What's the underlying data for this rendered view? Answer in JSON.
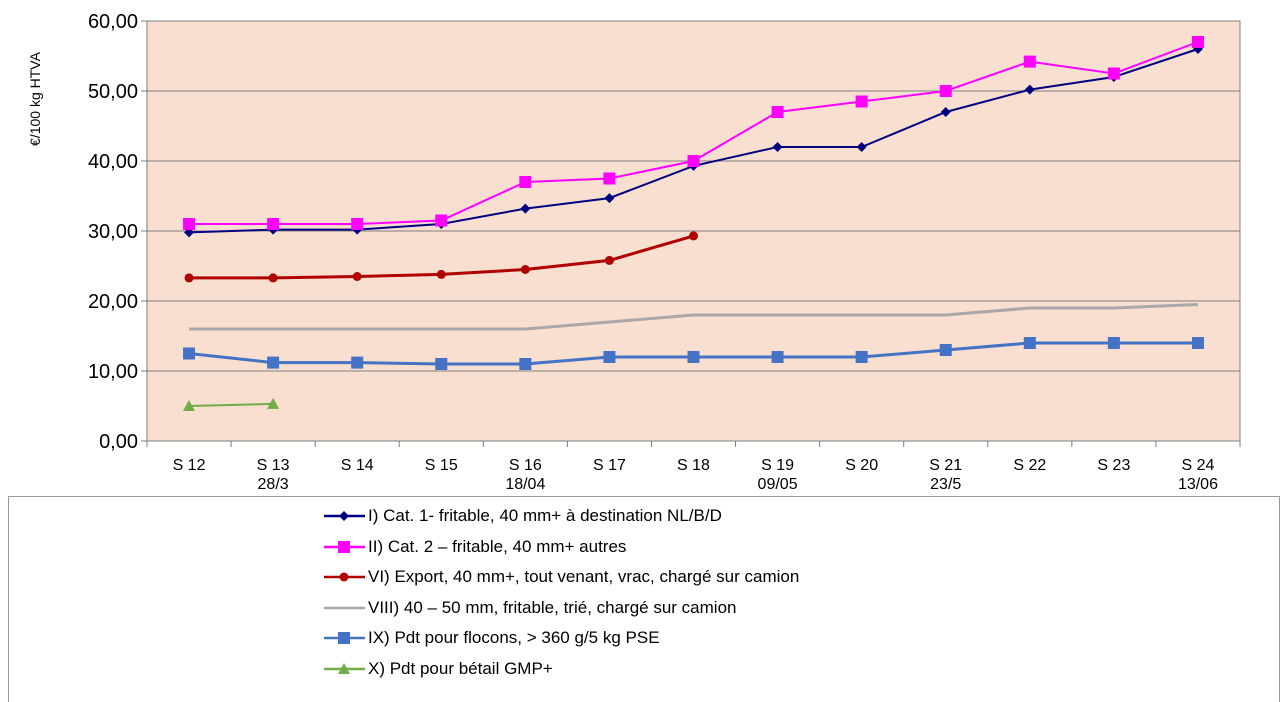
{
  "chart_data": {
    "type": "line",
    "ylabel": "€/100 kg HTVA",
    "ylim": [
      0,
      60
    ],
    "y_ticks": [
      "0,00",
      "10,00",
      "20,00",
      "30,00",
      "40,00",
      "50,00",
      "60,00"
    ],
    "categories": [
      [
        "S 12",
        ""
      ],
      [
        "S 13",
        "28/3"
      ],
      [
        "S 14",
        ""
      ],
      [
        "S 15",
        ""
      ],
      [
        "S 16",
        "18/04"
      ],
      [
        "S 17",
        ""
      ],
      [
        "S 18",
        ""
      ],
      [
        "S 19",
        "09/05"
      ],
      [
        "S 20",
        ""
      ],
      [
        "S 21",
        "23/5"
      ],
      [
        "S 22",
        ""
      ],
      [
        "S 23",
        ""
      ],
      [
        "S 24",
        "13/06"
      ]
    ],
    "grid": "horizontal",
    "legend_position": "bottom",
    "plot_background": "#f8dfd0",
    "series": [
      {
        "name": "I) Cat. 1- fritable, 40 mm+ à destination NL/B/D",
        "color": "#000080",
        "marker": "diamond",
        "values": [
          29.8,
          30.2,
          30.2,
          31.0,
          33.2,
          34.7,
          39.3,
          42.0,
          42.0,
          47.0,
          50.2,
          52.0,
          56.0
        ]
      },
      {
        "name": "II) Cat. 2 – fritable, 40 mm+ autres",
        "color": "#ff00ff",
        "marker": "square",
        "values": [
          31.0,
          31.0,
          31.0,
          31.5,
          37.0,
          37.5,
          40.0,
          47.0,
          48.5,
          50.0,
          54.2,
          52.5,
          57.0
        ]
      },
      {
        "name": "VI) Export, 40 mm+, tout venant, vrac, chargé sur camion",
        "color": "#b00000",
        "marker": "circle",
        "values": [
          23.3,
          23.3,
          23.5,
          23.8,
          24.5,
          25.8,
          29.3,
          null,
          null,
          null,
          null,
          null,
          null
        ]
      },
      {
        "name": "VIII)  40 – 50 mm, fritable, trié, chargé sur camion",
        "color": "#a8a8a8",
        "marker": "none",
        "values": [
          16.0,
          16.0,
          16.0,
          16.0,
          16.0,
          17.0,
          18.0,
          18.0,
          18.0,
          18.0,
          19.0,
          19.0,
          19.5
        ]
      },
      {
        "name": "IX) Pdt pour flocons, > 360 g/5 kg PSE",
        "color": "#4472c4",
        "marker": "square",
        "values": [
          12.5,
          11.2,
          11.2,
          11.0,
          11.0,
          12.0,
          12.0,
          12.0,
          12.0,
          13.0,
          14.0,
          14.0,
          14.0
        ]
      },
      {
        "name": "X) Pdt pour bétail GMP+",
        "color": "#70ad47",
        "marker": "triangle",
        "values": [
          5.0,
          5.3,
          null,
          null,
          null,
          null,
          null,
          null,
          null,
          null,
          null,
          null,
          null
        ]
      }
    ]
  }
}
